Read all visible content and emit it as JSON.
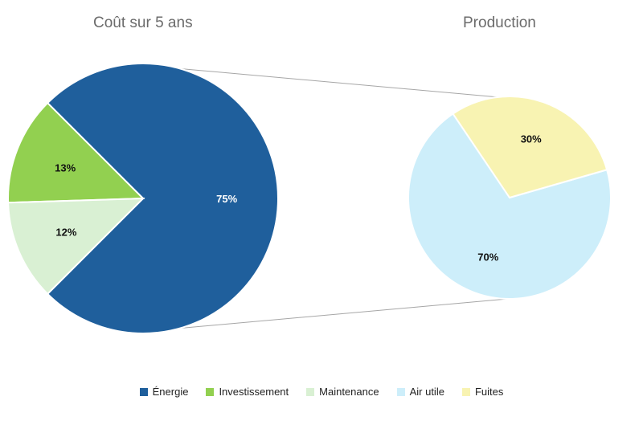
{
  "chart_data": [
    {
      "type": "pie",
      "title": "Coût sur 5 ans",
      "categories": [
        "Énergie",
        "Investissement",
        "Maintenance"
      ],
      "values": [
        75,
        13,
        12
      ],
      "labels": [
        "75%",
        "13%",
        "12%"
      ],
      "colors": [
        "#1f5f9c",
        "#92d050",
        "#d9f0d3"
      ]
    },
    {
      "type": "pie",
      "title": "Production",
      "categories": [
        "Air utile",
        "Fuites"
      ],
      "values": [
        70,
        30
      ],
      "labels": [
        "70%",
        "30%"
      ],
      "colors": [
        "#cdeefa",
        "#f8f3b2"
      ]
    }
  ],
  "legend": [
    {
      "label": "Énergie",
      "color": "#1f5f9c"
    },
    {
      "label": "Investissement",
      "color": "#92d050"
    },
    {
      "label": "Maintenance",
      "color": "#d9f0d3"
    },
    {
      "label": "Air utile",
      "color": "#cdeefa"
    },
    {
      "label": "Fuites",
      "color": "#f8f3b2"
    }
  ]
}
